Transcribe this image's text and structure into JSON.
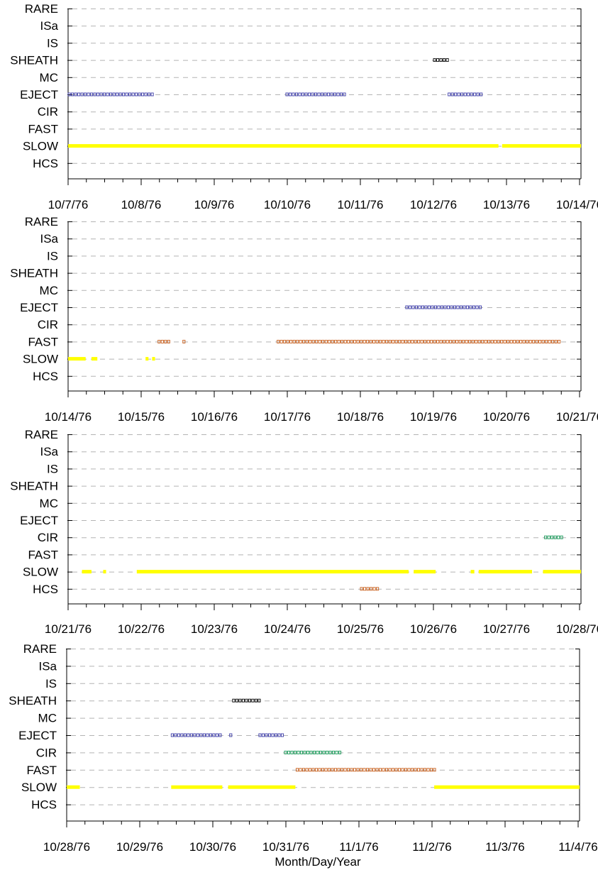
{
  "chart_data": {
    "type": "timeline",
    "xlabel": "Month/Day/Year",
    "categories": [
      "RARE",
      "ISa",
      "IS",
      "SHEATH",
      "MC",
      "EJECT",
      "CIR",
      "FAST",
      "SLOW",
      "HCS"
    ],
    "category_colors": {
      "SHEATH": "#000000",
      "EJECT": "#3c3ca8",
      "CIR": "#1a9a5a",
      "FAST": "#c8601e",
      "SLOW": "#ffff00",
      "HCS": "#c8601e"
    },
    "grid": "dashed horizontal",
    "panels": [
      {
        "x_range": [
          "1976-10-07",
          "1976-10-14"
        ],
        "tick_labels": [
          "10/7/76",
          "10/8/76",
          "10/9/76",
          "10/10/76",
          "10/11/76",
          "10/12/76",
          "10/13/76",
          "10/14/76"
        ],
        "segments": [
          {
            "category": "SLOW",
            "start": 0.0,
            "end": 5.89
          },
          {
            "category": "SLOW",
            "start": 5.94,
            "end": 7.02
          },
          {
            "category": "EJECT",
            "start": 0.0,
            "end": 1.2
          },
          {
            "category": "EJECT",
            "start": 2.98,
            "end": 3.79
          },
          {
            "category": "EJECT",
            "start": 5.2,
            "end": 5.67
          },
          {
            "category": "SHEATH",
            "start": 5.0,
            "end": 5.2
          }
        ]
      },
      {
        "x_range": [
          "1976-10-14",
          "1976-10-21"
        ],
        "tick_labels": [
          "10/14/76",
          "10/15/76",
          "10/16/76",
          "10/17/76",
          "10/18/76",
          "10/19/76",
          "10/20/76",
          "10/21/76"
        ],
        "segments": [
          {
            "category": "SLOW",
            "start": 0.0,
            "end": 0.24
          },
          {
            "category": "SLOW",
            "start": 0.32,
            "end": 0.4
          },
          {
            "category": "SLOW",
            "start": 1.06,
            "end": 1.1
          },
          {
            "category": "SLOW",
            "start": 1.15,
            "end": 1.19
          },
          {
            "category": "FAST",
            "start": 1.23,
            "end": 1.4
          },
          {
            "category": "FAST",
            "start": 1.57,
            "end": 1.61
          },
          {
            "category": "FAST",
            "start": 2.86,
            "end": 6.77
          },
          {
            "category": "EJECT",
            "start": 4.62,
            "end": 5.67
          }
        ]
      },
      {
        "x_range": [
          "1976-10-21",
          "1976-10-28"
        ],
        "tick_labels": [
          "10/21/76",
          "10/22/76",
          "10/23/76",
          "10/24/76",
          "10/25/76",
          "10/26/76",
          "10/27/76",
          "10/28/76"
        ],
        "segments": [
          {
            "category": "SLOW",
            "start": 0.19,
            "end": 0.32
          },
          {
            "category": "SLOW",
            "start": 0.48,
            "end": 0.52
          },
          {
            "category": "SLOW",
            "start": 0.94,
            "end": 4.66
          },
          {
            "category": "SLOW",
            "start": 4.73,
            "end": 5.03
          },
          {
            "category": "SLOW",
            "start": 5.51,
            "end": 5.56
          },
          {
            "category": "SLOW",
            "start": 5.62,
            "end": 6.35
          },
          {
            "category": "SLOW",
            "start": 6.5,
            "end": 7.17
          },
          {
            "category": "HCS",
            "start": 4.0,
            "end": 4.25
          },
          {
            "category": "CIR",
            "start": 6.52,
            "end": 6.8
          }
        ]
      },
      {
        "x_range": [
          "1976-10-28",
          "1976-11-04"
        ],
        "tick_labels": [
          "10/28/76",
          "10/29/76",
          "10/30/76",
          "10/31/76",
          "11/1/76",
          "11/2/76",
          "11/3/76",
          "11/4/76"
        ],
        "segments": [
          {
            "category": "SLOW",
            "start": 0.0,
            "end": 0.18
          },
          {
            "category": "SLOW",
            "start": 1.43,
            "end": 2.13
          },
          {
            "category": "SLOW",
            "start": 2.21,
            "end": 3.13
          },
          {
            "category": "SLOW",
            "start": 5.03,
            "end": 7.15
          },
          {
            "category": "EJECT",
            "start": 1.43,
            "end": 2.13
          },
          {
            "category": "EJECT",
            "start": 2.23,
            "end": 2.27
          },
          {
            "category": "EJECT",
            "start": 2.63,
            "end": 2.98
          },
          {
            "category": "SHEATH",
            "start": 2.27,
            "end": 2.65
          },
          {
            "category": "CIR",
            "start": 2.98,
            "end": 3.76
          },
          {
            "category": "FAST",
            "start": 3.14,
            "end": 5.06
          }
        ]
      }
    ]
  }
}
